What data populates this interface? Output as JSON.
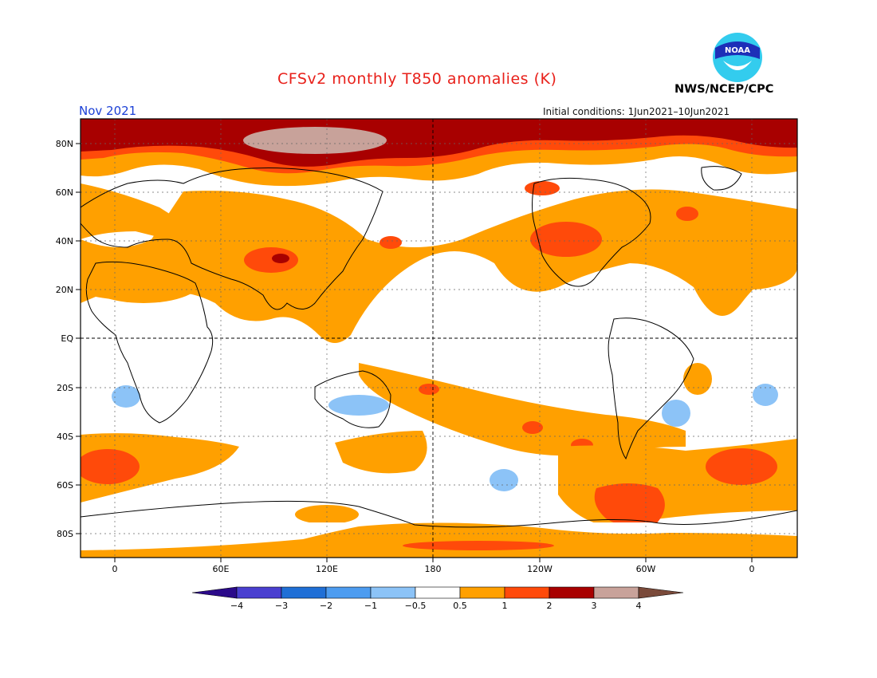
{
  "title": "CFSv2 monthly T850 anomalies (K)",
  "month": "Nov 2021",
  "initial_conditions": "Initial conditions: 1Jun2021–10Jun2021",
  "agency": "NWS/NCEP/CPC",
  "logo": {
    "text": "NOAA",
    "icon": "noaa-logo"
  },
  "map": {
    "lat_labels": [
      "80N",
      "60N",
      "40N",
      "20N",
      "EQ",
      "20S",
      "40S",
      "60S",
      "80S"
    ],
    "lon_labels": [
      "0",
      "60E",
      "120E",
      "180",
      "120W",
      "60W",
      "0"
    ],
    "grid": "dotted",
    "reference_lines": [
      "EQ",
      "180"
    ]
  },
  "colorbar": {
    "labels": [
      "−4",
      "−3",
      "−2",
      "−1",
      "−0.5",
      "0.5",
      "1",
      "2",
      "3",
      "4"
    ],
    "colors": [
      "#2b0a8a",
      "#4a3fd0",
      "#1f6fd6",
      "#4d9cf0",
      "#8cc3f7",
      "#ffffff",
      "#ffa000",
      "#ff4a0a",
      "#a80000",
      "#c8a29a",
      "#7a4a3a"
    ]
  },
  "legend_colors": {
    "land_outline": "#000000",
    "ocean_neutral": "#ffffff",
    "anomaly_0_5_to_1": "#ffa000",
    "anomaly_1_to_2": "#ff4a0a",
    "anomaly_2_to_3": "#a80000",
    "anomaly_3_to_4": "#c8a29a",
    "anomaly_neg_0_5_to_neg_1": "#8cc3f7"
  }
}
